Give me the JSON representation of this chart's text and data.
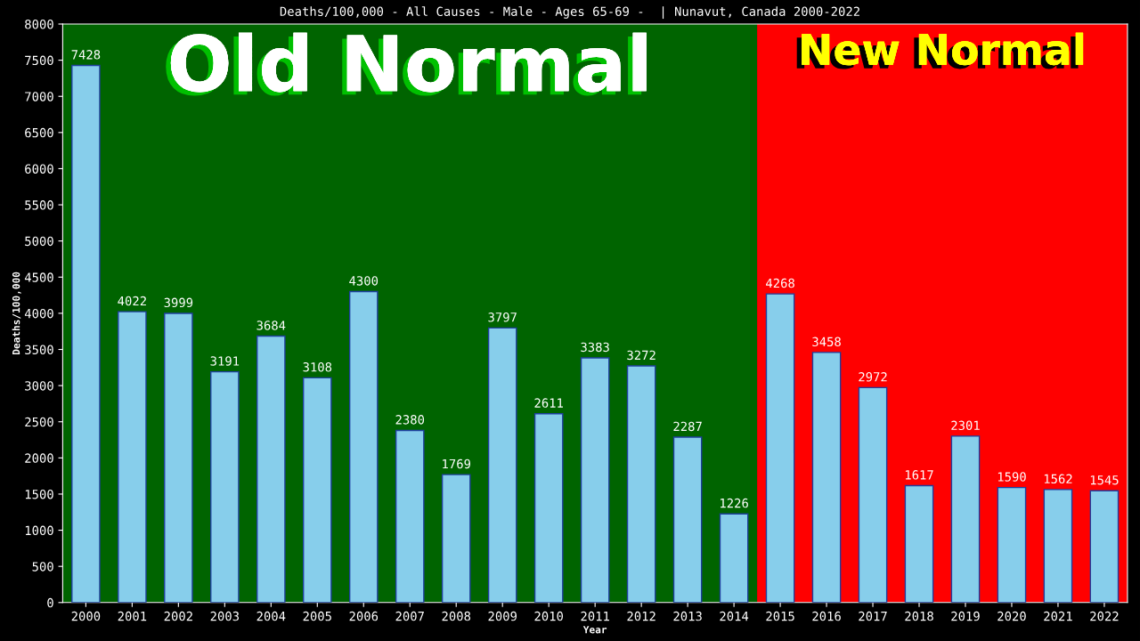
{
  "chart_data": {
    "type": "bar",
    "title": "Deaths/100,000 - All Causes - Male - Ages 65-69 -  | Nunavut, Canada 2000-2022",
    "xlabel": "Year",
    "ylabel": "Deaths/100,000",
    "categories": [
      "2000",
      "2001",
      "2002",
      "2003",
      "2004",
      "2005",
      "2006",
      "2007",
      "2008",
      "2009",
      "2010",
      "2011",
      "2012",
      "2013",
      "2014",
      "2015",
      "2016",
      "2017",
      "2018",
      "2019",
      "2020",
      "2021",
      "2022"
    ],
    "values": [
      7428,
      4022,
      3999,
      3191,
      3684,
      3108,
      4300,
      2380,
      1769,
      3797,
      2611,
      3383,
      3272,
      2287,
      1226,
      4268,
      3458,
      2972,
      1617,
      2301,
      1590,
      1562,
      1545
    ],
    "color": "#87ceeb",
    "data_labels": true,
    "ylim": [
      0,
      8000
    ],
    "yticks": [
      0,
      500,
      1000,
      1500,
      2000,
      2500,
      3000,
      3500,
      4000,
      4500,
      5000,
      5500,
      6000,
      6500,
      7000,
      7500,
      8000
    ],
    "bands": [
      {
        "axis": "x",
        "from": "2000",
        "to": "2014",
        "label": "Old Normal",
        "color": "#006400"
      },
      {
        "axis": "x",
        "from": "2015",
        "to": "2022",
        "label": "New Normal",
        "color": "#ff0000"
      }
    ],
    "grid": false,
    "legend": false
  }
}
